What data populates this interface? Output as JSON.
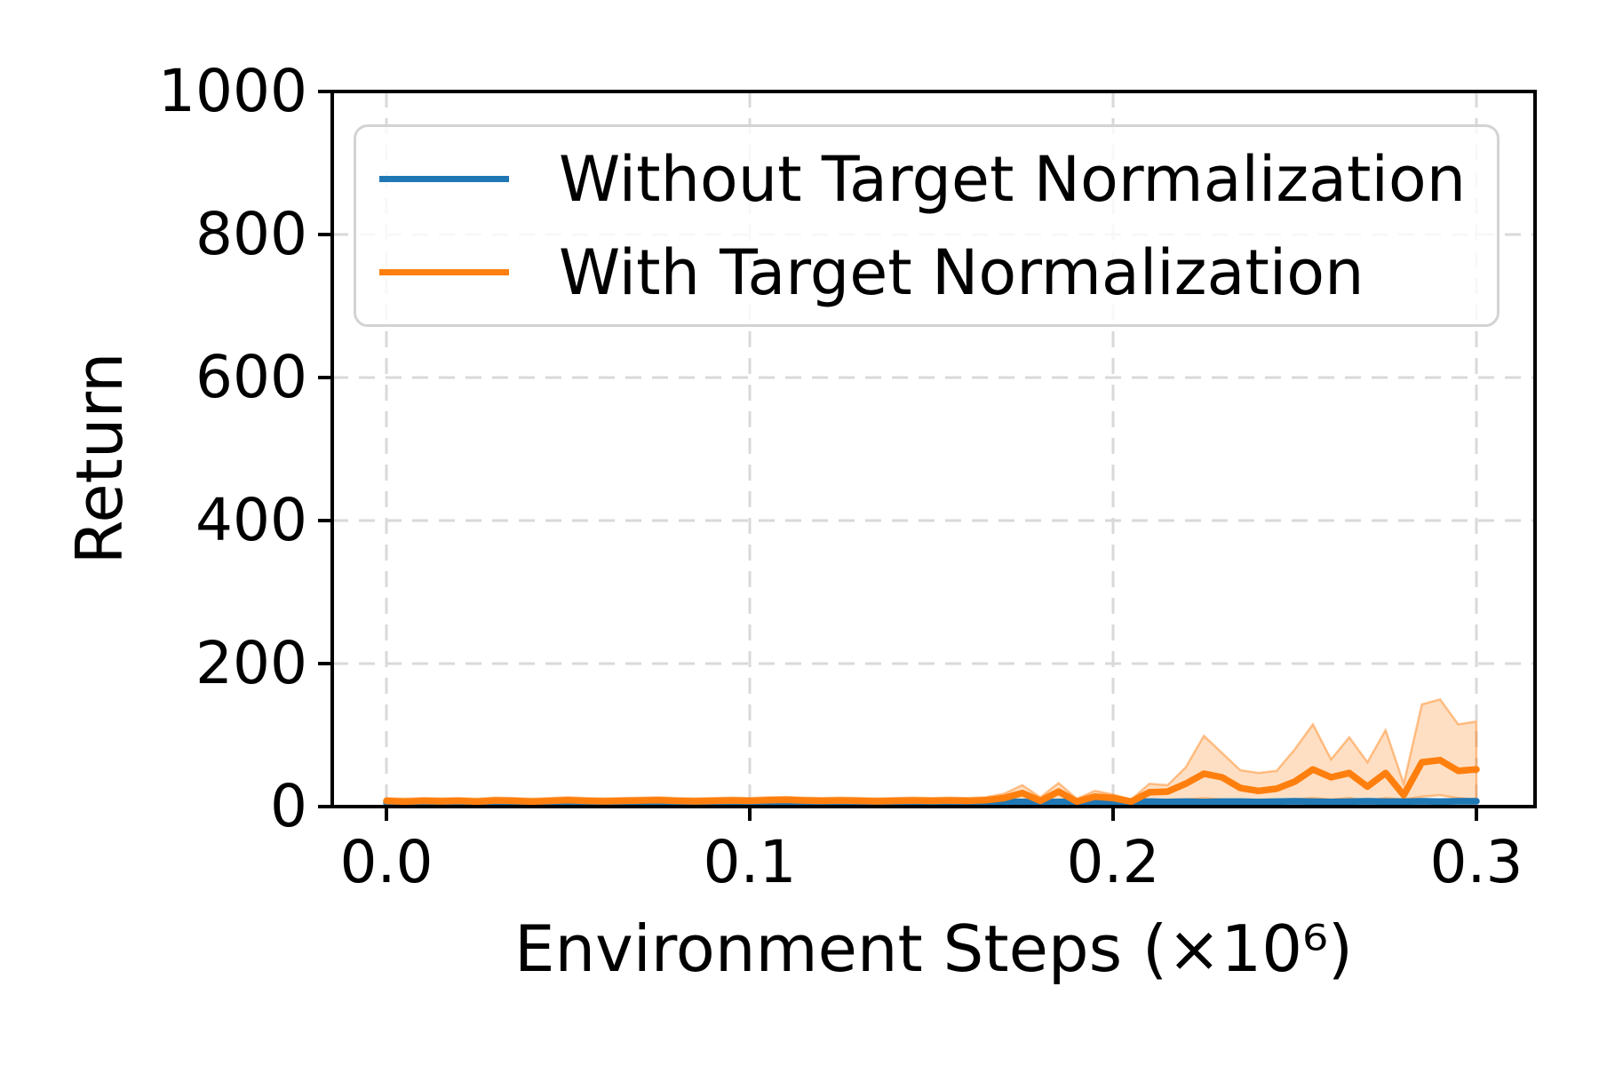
{
  "ylabel": "Return",
  "xlabel": "Environment Steps (×10⁶)",
  "legend": {
    "items": [
      {
        "label": "Without Target Normalization",
        "color": "#1f77b4"
      },
      {
        "label": "With Target Normalization",
        "color": "#ff7f0e"
      }
    ]
  },
  "chart_data": {
    "type": "line",
    "title": "",
    "xlabel": "Environment Steps (×10⁶)",
    "ylabel": "Return",
    "xlim": [
      0,
      0.3
    ],
    "ylim": [
      0,
      1000
    ],
    "xticks": [
      0.0,
      0.1,
      0.2,
      0.3
    ],
    "xtick_labels": [
      "0.0",
      "0.1",
      "0.2",
      "0.3"
    ],
    "yticks": [
      0,
      200,
      400,
      600,
      800,
      1000
    ],
    "ytick_labels": [
      "0",
      "200",
      "400",
      "600",
      "800",
      "1000"
    ],
    "grid": true,
    "grid_style": "dashed",
    "grid_color": "#d9d9d9",
    "spine_color": "#000000",
    "legend_position": "upper left",
    "x": [
      0.0,
      0.005,
      0.01,
      0.015,
      0.02,
      0.025,
      0.03,
      0.035,
      0.04,
      0.045,
      0.05,
      0.055,
      0.06,
      0.065,
      0.07,
      0.075,
      0.08,
      0.085,
      0.09,
      0.095,
      0.1,
      0.105,
      0.11,
      0.115,
      0.12,
      0.125,
      0.13,
      0.135,
      0.14,
      0.145,
      0.15,
      0.155,
      0.16,
      0.165,
      0.17,
      0.175,
      0.18,
      0.185,
      0.19,
      0.195,
      0.2,
      0.205,
      0.21,
      0.215,
      0.22,
      0.225,
      0.23,
      0.235,
      0.24,
      0.245,
      0.25,
      0.255,
      0.26,
      0.265,
      0.27,
      0.275,
      0.28,
      0.285,
      0.29,
      0.295,
      0.3
    ],
    "series": [
      {
        "name": "Without Target Normalization",
        "color": "#1f77b4",
        "band_alpha": 0.25,
        "values": [
          5,
          6,
          6.5,
          6,
          5.5,
          6,
          6.5,
          7,
          6,
          5.5,
          6,
          6.5,
          6,
          5.5,
          6.5,
          7,
          6.5,
          6,
          5.5,
          6.5,
          6,
          6.5,
          7,
          6.5,
          6,
          5.5,
          6.5,
          6,
          5.5,
          6,
          6.5,
          6,
          5.5,
          6.5,
          7,
          6.5,
          6,
          6.5,
          7,
          6.5,
          6,
          6.5,
          7,
          6.5,
          7,
          6.5,
          7,
          7,
          6.5,
          7,
          7.5,
          7,
          6.5,
          7,
          7.5,
          7,
          7,
          7.5,
          7,
          7.5,
          7.5
        ],
        "band_upper": [
          8,
          9,
          9.5,
          9,
          8.5,
          9,
          9.5,
          10,
          9,
          8.5,
          9,
          9.5,
          9,
          8.5,
          9.5,
          10,
          9.5,
          9,
          8.5,
          9.5,
          9,
          9.5,
          10,
          9.5,
          9,
          8.5,
          9.5,
          9,
          8.5,
          9,
          9.5,
          9,
          8.5,
          9.5,
          10,
          9.5,
          9,
          9.5,
          10,
          9.5,
          9,
          9.5,
          10,
          9.5,
          10,
          9.5,
          10,
          10,
          9.5,
          10,
          10.5,
          10,
          9.5,
          10,
          10.5,
          10,
          10,
          10.5,
          10,
          10.5,
          10.5
        ],
        "band_lower": [
          2,
          3,
          3.5,
          3,
          2.5,
          3,
          3.5,
          4,
          3,
          2.5,
          3,
          3.5,
          3,
          2.5,
          3.5,
          4,
          3.5,
          3,
          2.5,
          3.5,
          3,
          3.5,
          4,
          3.5,
          3,
          2.5,
          3.5,
          3,
          2.5,
          3,
          3.5,
          3,
          2.5,
          3.5,
          4,
          3.5,
          3,
          3.5,
          4,
          3.5,
          3,
          3.5,
          4,
          3.5,
          4,
          3.5,
          4,
          4,
          3.5,
          4,
          4.5,
          4,
          3.5,
          4,
          4.5,
          4,
          4,
          4.5,
          4,
          4.5,
          4.5
        ]
      },
      {
        "name": "With Target Normalization",
        "color": "#ff7f0e",
        "band_alpha": 0.25,
        "values": [
          8,
          7,
          8,
          7.5,
          8,
          7,
          8.5,
          8,
          7,
          8,
          9,
          8,
          7.5,
          8,
          8.5,
          9,
          8,
          7.5,
          8,
          8.5,
          8,
          9,
          9.5,
          8.5,
          8,
          8.5,
          8,
          7.5,
          8,
          8.5,
          8,
          8.5,
          8,
          9,
          12,
          19,
          8,
          21,
          7,
          14,
          12,
          7,
          20,
          21,
          32,
          46,
          41,
          26,
          22,
          25,
          35,
          52,
          41,
          47,
          28,
          47,
          16,
          62,
          65,
          50,
          52
        ],
        "band_upper": [
          12,
          11,
          12,
          11.5,
          12,
          11,
          12.5,
          12,
          11,
          12,
          13,
          12,
          11.5,
          12,
          12.5,
          13,
          12,
          11.5,
          12,
          12.5,
          12,
          13,
          13.5,
          12.5,
          12,
          12.5,
          12,
          11.5,
          12,
          12.5,
          12,
          12.5,
          12,
          13,
          18,
          30,
          13,
          33,
          11,
          22,
          17,
          10,
          32,
          30,
          55,
          99,
          75,
          51,
          47,
          50,
          80,
          115,
          66,
          97,
          62,
          107,
          32,
          143,
          150,
          115,
          119
        ],
        "band_lower": [
          4,
          3,
          4,
          3.5,
          4,
          3,
          4.5,
          4,
          3,
          4,
          5,
          4,
          3.5,
          4,
          4.5,
          5,
          4,
          3.5,
          4,
          4.5,
          4,
          5,
          5.5,
          4.5,
          4,
          4.5,
          4,
          3.5,
          4,
          4.5,
          4,
          4.5,
          4,
          5,
          6,
          8,
          4,
          8,
          3,
          6,
          6,
          4,
          8,
          10,
          10,
          12,
          10,
          8,
          6,
          8,
          10,
          12,
          10,
          12,
          8,
          12,
          10,
          14,
          16,
          12,
          10
        ]
      }
    ]
  }
}
